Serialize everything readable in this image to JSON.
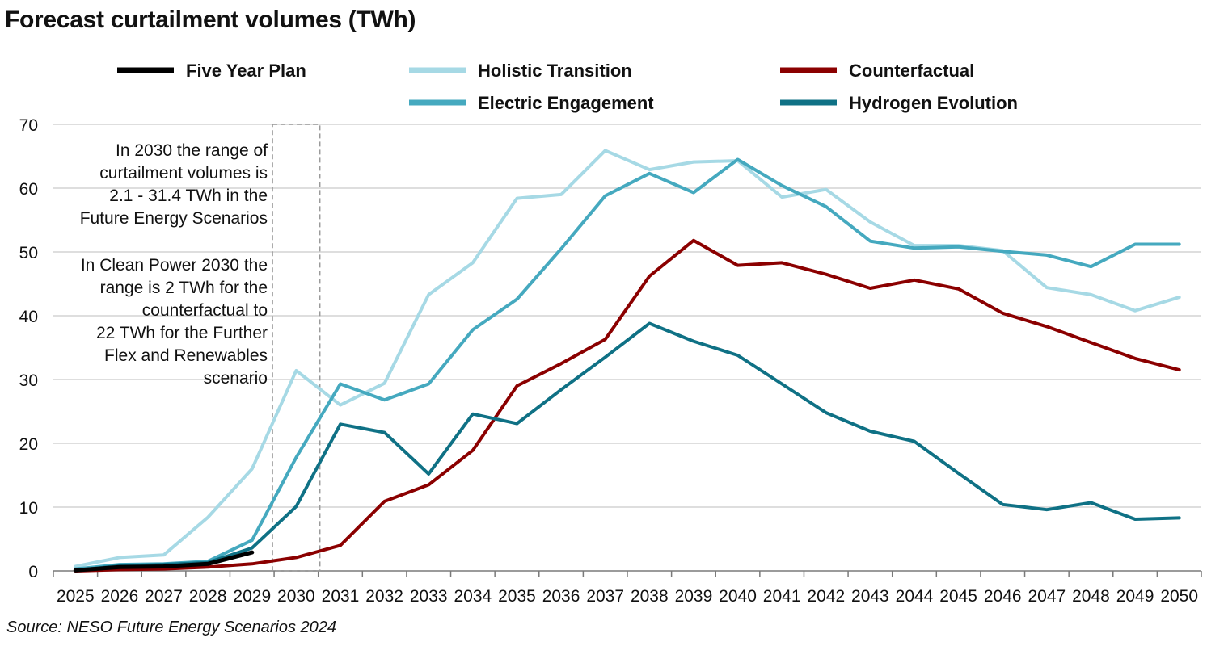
{
  "chart_data": {
    "type": "line",
    "title": "Forecast curtailment volumes (TWh)",
    "source": "Source: NESO Future Energy Scenarios 2024",
    "x": [
      "2025",
      "2026",
      "2027",
      "2028",
      "2029",
      "2030",
      "2031",
      "2032",
      "2033",
      "2034",
      "2035",
      "2036",
      "2037",
      "2038",
      "2039",
      "2040",
      "2041",
      "2042",
      "2043",
      "2044",
      "2045",
      "2046",
      "2047",
      "2048",
      "2049",
      "2050"
    ],
    "ylim": [
      0,
      70
    ],
    "yticks": [
      "0",
      "10",
      "20",
      "30",
      "40",
      "50",
      "60",
      "70"
    ],
    "grid": true,
    "legend_position": "top",
    "series": [
      {
        "name": "Five Year Plan",
        "color": "#000000",
        "values": [
          0.1,
          0.6,
          0.7,
          1.1,
          2.9,
          null,
          null,
          null,
          null,
          null,
          null,
          null,
          null,
          null,
          null,
          null,
          null,
          null,
          null,
          null,
          null,
          null,
          null,
          null,
          null,
          null
        ]
      },
      {
        "name": "Holistic Transition",
        "color": "#a6d9e5",
        "values": [
          0.7,
          2.1,
          2.5,
          8.4,
          16.0,
          31.4,
          26.0,
          29.4,
          43.3,
          48.3,
          58.4,
          59.0,
          65.9,
          62.9,
          64.1,
          64.3,
          58.6,
          59.8,
          54.7,
          51.0,
          51.0,
          50.2,
          44.4,
          43.3,
          40.8,
          42.9
        ]
      },
      {
        "name": "Counterfactual",
        "color": "#8b0000",
        "values": [
          0.0,
          0.2,
          0.3,
          0.6,
          1.1,
          2.1,
          4.0,
          10.9,
          13.5,
          18.9,
          29.0,
          32.5,
          36.3,
          46.2,
          51.8,
          47.9,
          48.3,
          46.5,
          44.3,
          45.6,
          44.2,
          40.4,
          38.3,
          35.8,
          33.3,
          31.5
        ]
      },
      {
        "name": "Electric Engagement",
        "color": "#45a9bf",
        "values": [
          0.3,
          1.0,
          1.1,
          1.5,
          4.8,
          17.8,
          29.3,
          26.8,
          29.3,
          37.8,
          42.6,
          50.5,
          58.8,
          62.3,
          59.3,
          64.5,
          60.4,
          57.1,
          51.7,
          50.6,
          50.8,
          50.1,
          49.5,
          47.7,
          51.2,
          51.2
        ]
      },
      {
        "name": "Hydrogen Evolution",
        "color": "#0f7185",
        "values": [
          0.1,
          0.8,
          1.0,
          1.3,
          3.6,
          10.1,
          23.0,
          21.7,
          15.2,
          24.6,
          23.1,
          28.4,
          33.5,
          38.8,
          36.0,
          33.8,
          29.3,
          24.8,
          21.9,
          20.3,
          15.3,
          10.4,
          9.6,
          10.7,
          8.1,
          8.3
        ]
      }
    ],
    "annotation": {
      "highlight_year": "2030",
      "lines": [
        "In 2030 the range of",
        "curtailment volumes is",
        "2.1 - 31.4 TWh in the",
        "Future Energy Scenarios",
        "In Clean Power 2030 the",
        "range is 2 TWh for the",
        "counterfactual to",
        "22 TWh for the Further",
        "Flex and Renewables",
        "scenario"
      ]
    }
  }
}
